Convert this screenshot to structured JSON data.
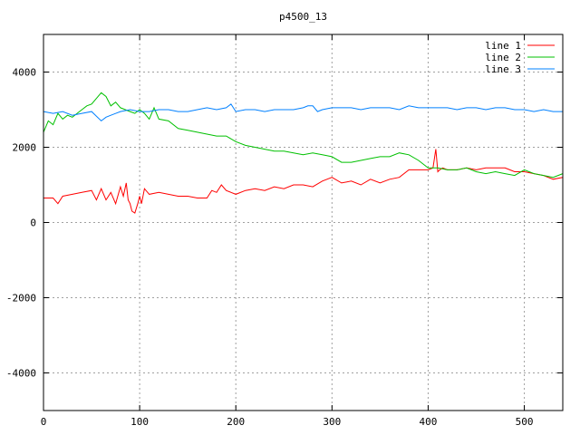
{
  "chart_data": {
    "type": "line",
    "title": "p4500_13",
    "xlabel": "",
    "ylabel": "",
    "xlim": [
      0,
      540
    ],
    "ylim": [
      -5000,
      5000
    ],
    "xticks": [
      0,
      100,
      200,
      300,
      400,
      500
    ],
    "yticks": [
      -4000,
      -2000,
      0,
      2000,
      4000
    ],
    "grid": true,
    "legend_position": "top-right",
    "series": [
      {
        "name": "line 1",
        "color": "#ff0000",
        "x": [
          0,
          10,
          15,
          20,
          30,
          40,
          50,
          55,
          60,
          65,
          70,
          75,
          80,
          83,
          86,
          88,
          90,
          92,
          95,
          98,
          100,
          102,
          105,
          110,
          120,
          130,
          140,
          150,
          160,
          170,
          175,
          180,
          185,
          190,
          195,
          200,
          210,
          220,
          230,
          240,
          250,
          260,
          270,
          280,
          290,
          300,
          310,
          320,
          330,
          340,
          350,
          360,
          370,
          380,
          390,
          400,
          405,
          408,
          410,
          412,
          415,
          420,
          430,
          440,
          450,
          460,
          470,
          480,
          490,
          500,
          510,
          520,
          530,
          540
        ],
        "y": [
          650,
          650,
          500,
          700,
          750,
          800,
          850,
          600,
          900,
          600,
          800,
          500,
          950,
          700,
          1050,
          600,
          500,
          300,
          250,
          500,
          700,
          500,
          900,
          750,
          800,
          750,
          700,
          700,
          650,
          650,
          850,
          800,
          1000,
          850,
          800,
          750,
          850,
          900,
          850,
          950,
          900,
          1000,
          1000,
          950,
          1100,
          1200,
          1050,
          1100,
          1000,
          1150,
          1050,
          1150,
          1200,
          1400,
          1400,
          1400,
          1450,
          1950,
          1350,
          1400,
          1450,
          1400,
          1400,
          1450,
          1400,
          1450,
          1450,
          1450,
          1350,
          1350,
          1300,
          1250,
          1150,
          1200
        ]
      },
      {
        "name": "line 2",
        "color": "#00c000",
        "x": [
          0,
          5,
          10,
          15,
          20,
          25,
          30,
          35,
          40,
          45,
          50,
          55,
          60,
          65,
          70,
          75,
          80,
          85,
          90,
          95,
          100,
          105,
          110,
          115,
          120,
          130,
          140,
          150,
          160,
          170,
          180,
          190,
          200,
          210,
          220,
          230,
          240,
          250,
          260,
          270,
          280,
          290,
          300,
          310,
          320,
          330,
          340,
          350,
          360,
          370,
          380,
          390,
          400,
          410,
          420,
          430,
          440,
          450,
          460,
          470,
          480,
          490,
          500,
          510,
          520,
          530,
          540
        ],
        "y": [
          2400,
          2700,
          2600,
          2900,
          2750,
          2850,
          2800,
          2900,
          3000,
          3100,
          3150,
          3300,
          3450,
          3350,
          3100,
          3200,
          3050,
          3000,
          2950,
          2900,
          3000,
          2900,
          2750,
          3050,
          2750,
          2700,
          2500,
          2450,
          2400,
          2350,
          2300,
          2300,
          2150,
          2050,
          2000,
          1950,
          1900,
          1900,
          1850,
          1800,
          1850,
          1800,
          1750,
          1600,
          1600,
          1650,
          1700,
          1750,
          1750,
          1850,
          1800,
          1650,
          1450,
          1450,
          1400,
          1400,
          1450,
          1350,
          1300,
          1350,
          1300,
          1250,
          1400,
          1300,
          1250,
          1200,
          1300
        ]
      },
      {
        "name": "line 3",
        "color": "#0080ff",
        "x": [
          0,
          10,
          20,
          30,
          40,
          50,
          60,
          65,
          70,
          80,
          90,
          100,
          110,
          120,
          130,
          140,
          150,
          160,
          170,
          180,
          190,
          195,
          200,
          210,
          220,
          230,
          240,
          250,
          260,
          270,
          275,
          280,
          285,
          290,
          300,
          310,
          320,
          330,
          340,
          350,
          360,
          370,
          380,
          390,
          400,
          410,
          420,
          430,
          440,
          450,
          460,
          470,
          480,
          490,
          500,
          510,
          520,
          530,
          540
        ],
        "y": [
          2950,
          2900,
          2950,
          2850,
          2900,
          2950,
          2700,
          2800,
          2850,
          2950,
          3000,
          2950,
          2950,
          3000,
          3000,
          2950,
          2950,
          3000,
          3050,
          3000,
          3050,
          3150,
          2950,
          3000,
          3000,
          2950,
          3000,
          3000,
          3000,
          3050,
          3100,
          3100,
          2950,
          3000,
          3050,
          3050,
          3050,
          3000,
          3050,
          3050,
          3050,
          3000,
          3100,
          3050,
          3050,
          3050,
          3050,
          3000,
          3050,
          3050,
          3000,
          3050,
          3050,
          3000,
          3000,
          2950,
          3000,
          2950,
          2950
        ]
      }
    ]
  }
}
